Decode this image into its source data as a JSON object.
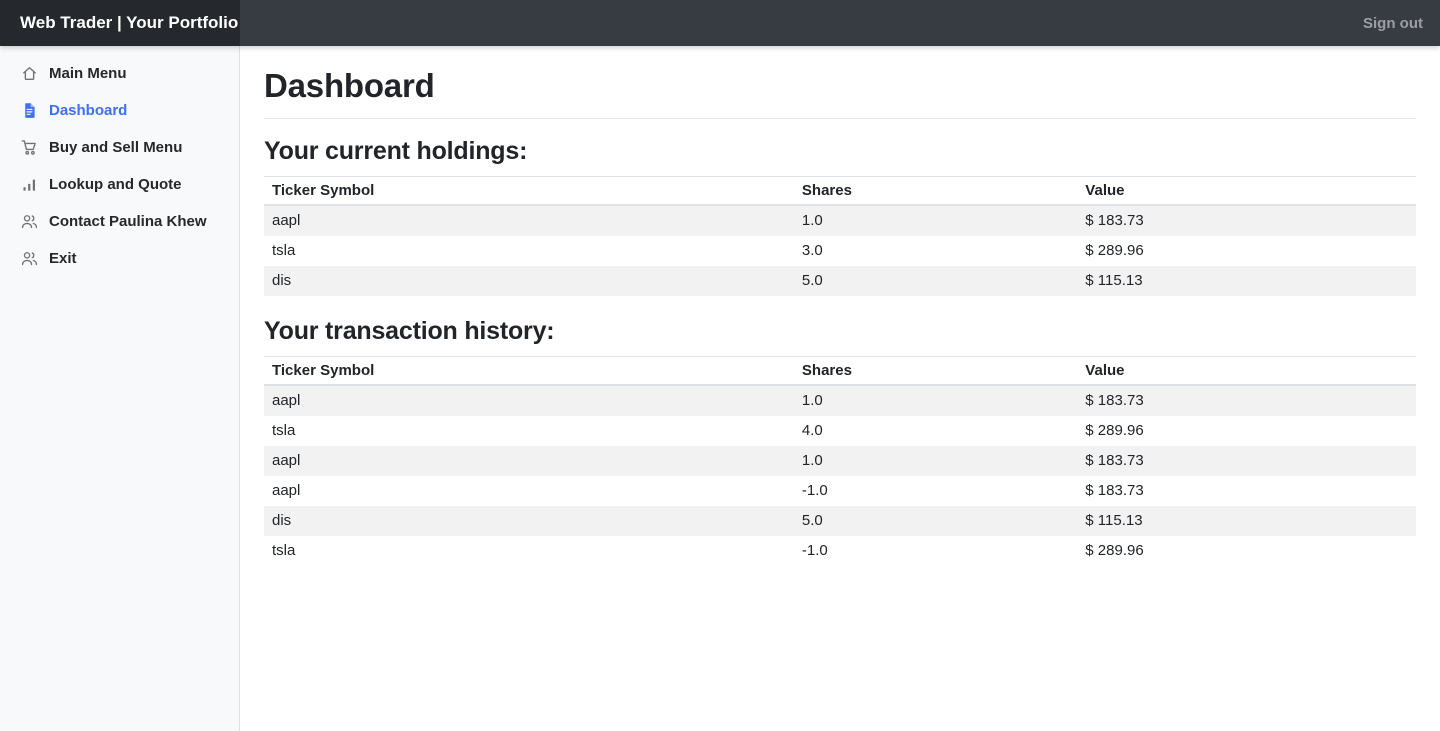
{
  "navbar": {
    "brand": "Web Trader | Your Portfolio",
    "sign_out": "Sign out"
  },
  "sidebar": {
    "items": [
      {
        "id": "main-menu",
        "label": "Main Menu",
        "icon": "house-icon",
        "active": false
      },
      {
        "id": "dashboard",
        "label": "Dashboard",
        "icon": "file-text-icon",
        "active": true
      },
      {
        "id": "buy-sell-menu",
        "label": "Buy and Sell Menu",
        "icon": "cart-icon",
        "active": false
      },
      {
        "id": "lookup-and-quote",
        "label": "Lookup and Quote",
        "icon": "bar-chart-icon",
        "active": false
      },
      {
        "id": "contact",
        "label": "Contact Paulina Khew",
        "icon": "users-icon",
        "active": false
      },
      {
        "id": "exit",
        "label": "Exit",
        "icon": "users-icon",
        "active": false
      }
    ]
  },
  "main": {
    "title": "Dashboard",
    "holdings": {
      "heading": "Your current holdings:",
      "columns": [
        "Ticker Symbol",
        "Shares",
        "Value"
      ],
      "rows": [
        [
          "aapl",
          "1.0",
          "$ 183.73"
        ],
        [
          "tsla",
          "3.0",
          "$ 289.96"
        ],
        [
          "dis",
          "5.0",
          "$ 115.13"
        ]
      ]
    },
    "transactions": {
      "heading": "Your transaction history:",
      "columns": [
        "Ticker Symbol",
        "Shares",
        "Value"
      ],
      "rows": [
        [
          "aapl",
          "1.0",
          "$ 183.73"
        ],
        [
          "tsla",
          "4.0",
          "$ 289.96"
        ],
        [
          "aapl",
          "1.0",
          "$ 183.73"
        ],
        [
          "aapl",
          "-1.0",
          "$ 183.73"
        ],
        [
          "dis",
          "5.0",
          "$ 115.13"
        ],
        [
          "tsla",
          "-1.0",
          "$ 289.96"
        ]
      ]
    }
  },
  "colors": {
    "accent": "#3e6ff4",
    "navbar_bg": "#373b42",
    "brand_bg": "#25282c",
    "sidebar_bg": "#f8f9fa",
    "stripe": "#f2f2f3",
    "border": "#dee2e6",
    "icon_gray": "#6f7479"
  }
}
